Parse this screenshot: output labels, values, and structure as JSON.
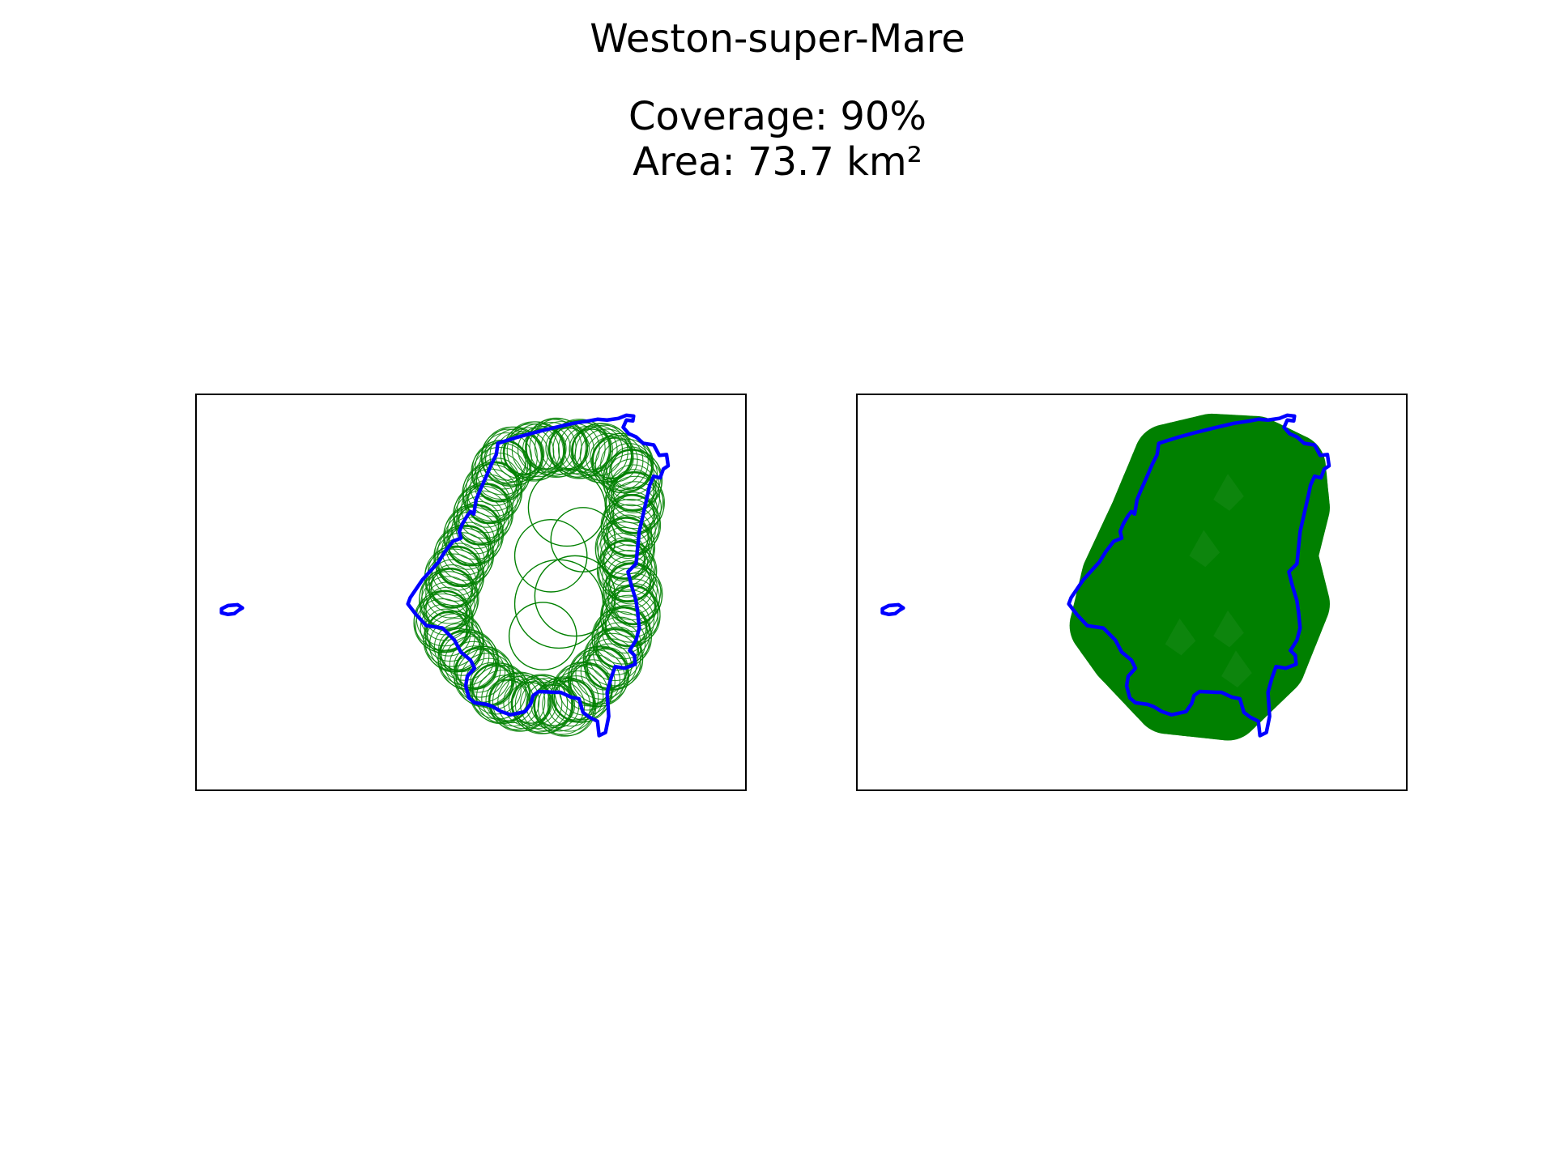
{
  "figure": {
    "title": "Weston-super-Mare",
    "coverage_line": "Coverage: 90%",
    "area_line": "Area: 73.7 km²"
  },
  "colors": {
    "boundary": "#0000ff",
    "coverage": "#008000",
    "frame": "#000000",
    "background": "#ffffff"
  },
  "map": {
    "coverage_fraction": 0.9,
    "area_km2": 73.7,
    "panels": [
      {
        "name": "left",
        "style": "circle-outlines"
      },
      {
        "name": "right",
        "style": "filled-union"
      }
    ]
  }
}
